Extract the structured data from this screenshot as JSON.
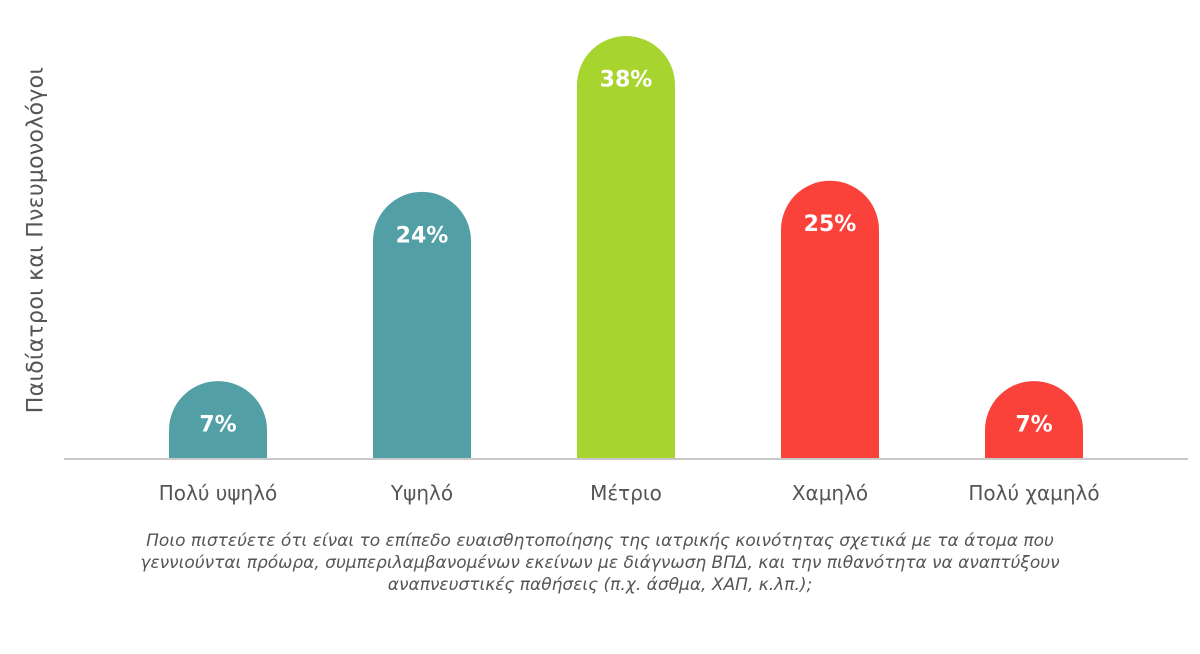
{
  "chart_data": {
    "type": "bar",
    "categories": [
      "Πολύ υψηλό",
      "Υψηλό",
      "Μέτριο",
      "Χαμηλό",
      "Πολύ χαμηλό"
    ],
    "values": [
      7,
      24,
      38,
      25,
      7
    ],
    "data_labels": [
      "7%",
      "24%",
      "38%",
      "25%",
      "7%"
    ],
    "unit": "%",
    "ylabel": "Παιδίατροι και Πνευμονολόγοι",
    "ylim": [
      0,
      38
    ],
    "grid": false,
    "legend": "none",
    "bar_colors": [
      "#539fa6",
      "#539fa6",
      "#a8d42f",
      "#fa423b",
      "#fa423b"
    ],
    "label_color": "#ffffff",
    "axis_color": "#c8c8c8",
    "text_color": "#555555"
  },
  "caption": {
    "lines": [
      "Ποιο πιστεύετε ότι είναι το επίπεδο ευαισθητοποίησης της ιατρικής κοινότητας σχετικά με τα άτομα που",
      "γεννιούνται πρόωρα, συμπεριλαμβανομένων εκείνων με διάγνωση ΒΠΔ, και την πιθανότητα να αναπτύξουν",
      "αναπνευστικές παθήσεις (π.χ. άσθμα, ΧΑΠ, κ.λπ.);"
    ]
  }
}
